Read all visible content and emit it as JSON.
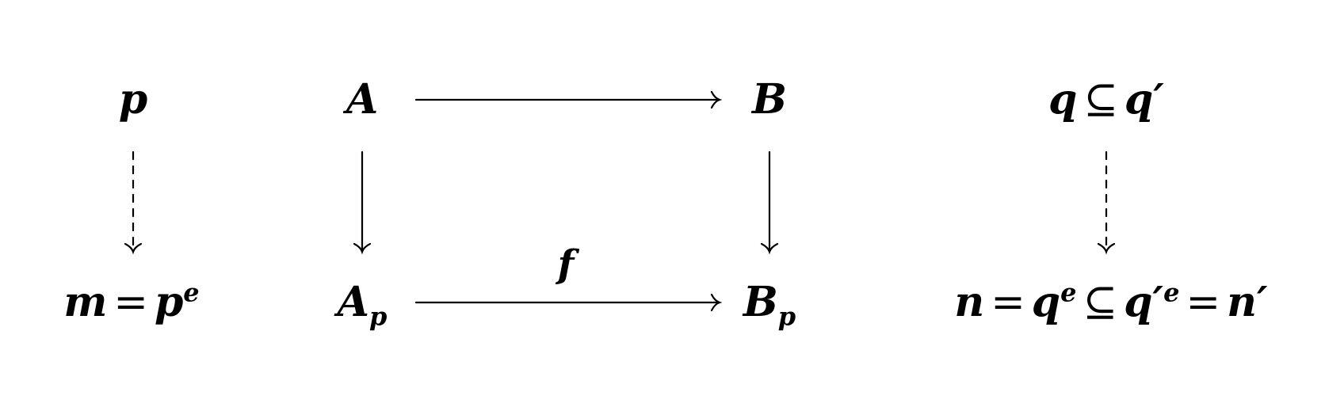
{
  "nodes": {
    "p": "p",
    "m_lhs": "m",
    "m_eq": "=",
    "m_base": "p",
    "m_sup": "e",
    "A": "A",
    "Ap_base": "A",
    "Ap_sub": "p",
    "B": "B",
    "Bp_base": "B",
    "Bp_sub": "p",
    "q_left": "q",
    "q_subset": "⊆",
    "q_right": "q′",
    "n_lhs": "n",
    "n_eq1": "=",
    "n_q": "q",
    "n_q_sup": "e",
    "n_subset": "⊆",
    "n_qprime": "q′",
    "n_qprime_sup": "e",
    "n_eq2": "=",
    "n_rhs": "n′"
  },
  "arrow_labels": {
    "f": "f"
  },
  "arrows": [
    {
      "from": "A",
      "to": "B",
      "style": "solid"
    },
    {
      "from": "A",
      "to": "A_p",
      "style": "solid"
    },
    {
      "from": "B",
      "to": "B_p",
      "style": "solid"
    },
    {
      "from": "A_p",
      "to": "B_p",
      "style": "solid",
      "label": "f"
    },
    {
      "from": "p",
      "to": "m = p^e",
      "style": "dashed"
    },
    {
      "from": "q ⊆ q′",
      "to": "n = q^e ⊆ q′^e = n′",
      "style": "dashed"
    }
  ],
  "colors": {
    "ink": "#000000",
    "background": "#ffffff"
  }
}
